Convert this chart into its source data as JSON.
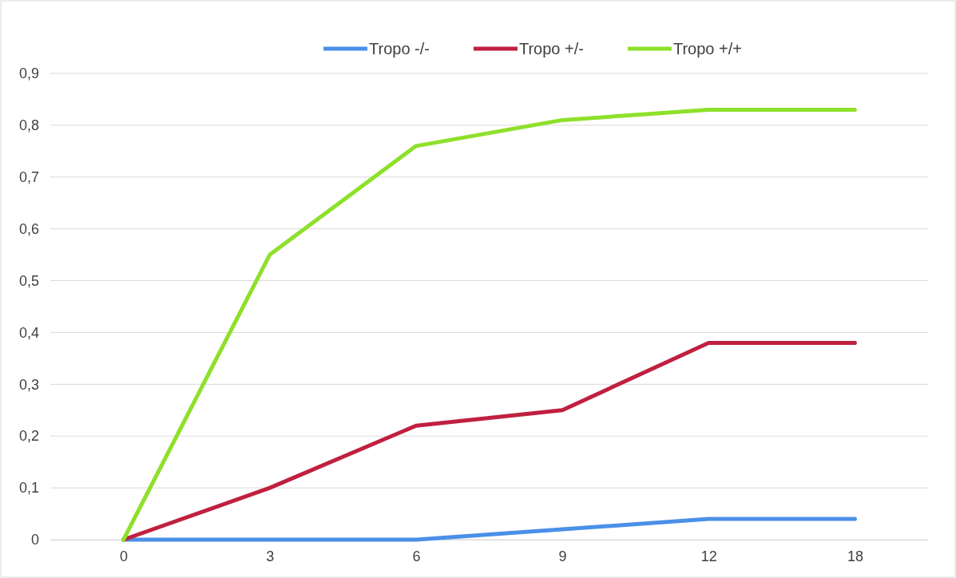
{
  "chart_data": {
    "type": "line",
    "categories": [
      "0",
      "3",
      "6",
      "9",
      "12",
      "18"
    ],
    "series": [
      {
        "name": "Tropo -/-",
        "color": "#4a90e8",
        "values": [
          0,
          0,
          0,
          0.02,
          0.04,
          0.04
        ]
      },
      {
        "name": "Tropo +/-",
        "color": "#c0203f",
        "values": [
          0,
          0.1,
          0.22,
          0.25,
          0.38,
          0.38
        ]
      },
      {
        "name": "Tropo +/+",
        "color": "#8ee02a",
        "values": [
          0,
          0.55,
          0.76,
          0.81,
          0.83,
          0.83
        ]
      }
    ],
    "ylim": [
      0,
      0.9
    ],
    "yticks": [
      0,
      {
        "value": 0.1,
        "label": "0,1"
      },
      {
        "value": 0.2,
        "label": "0,2"
      },
      {
        "value": 0.3,
        "label": "0,3"
      },
      {
        "value": 0.4,
        "label": "0,4"
      },
      {
        "value": 0.5,
        "label": "0,5"
      },
      {
        "value": 0.6,
        "label": "0,6"
      },
      {
        "value": 0.7,
        "label": "0,7"
      },
      {
        "value": 0.8,
        "label": "0,8"
      },
      {
        "value": 0.9,
        "label": "0,9"
      }
    ],
    "grid": "y",
    "legend": "top",
    "marker": "none",
    "line_style": "solid"
  }
}
